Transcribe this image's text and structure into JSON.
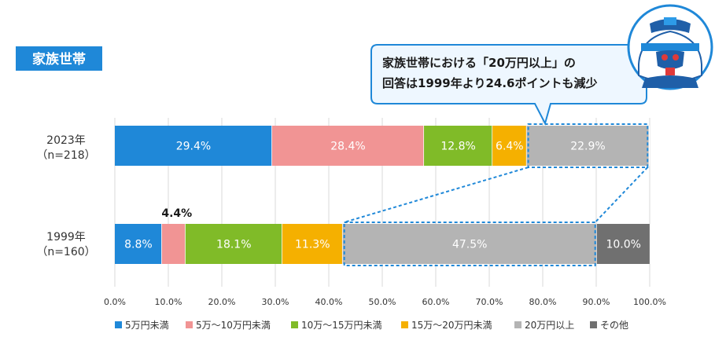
{
  "badge": {
    "label": "家族世帯",
    "color": "#1f88d8"
  },
  "callout": {
    "line1": "家族世帯における「20万円以上」の",
    "line2": "回答は1999年より24.6ポイントも減少",
    "border_color": "#1f88d8",
    "fill_color": "#eef7ff"
  },
  "mascot": {
    "icon": "helmet-mascot-icon"
  },
  "chart_data": {
    "type": "bar",
    "orientation": "horizontal",
    "stacked": true,
    "categories": [
      {
        "line1": "2023年",
        "line2": "（n=218）"
      },
      {
        "line1": "1999年",
        "line2": "（n=160）"
      }
    ],
    "series": [
      {
        "name": "5万円未満",
        "color": "#1f88d8",
        "values": [
          29.4,
          8.8
        ],
        "labels": [
          "29.4%",
          "8.8%"
        ]
      },
      {
        "name": "5万～10万円未満",
        "color": "#f19494",
        "values": [
          28.4,
          4.4
        ],
        "labels": [
          "28.4%",
          "4.4%"
        ]
      },
      {
        "name": "10万～15万円未満",
        "color": "#80bb28",
        "values": [
          12.8,
          18.1
        ],
        "labels": [
          "12.8%",
          "18.1%"
        ]
      },
      {
        "name": "15万～20万円未満",
        "color": "#f5b000",
        "values": [
          6.4,
          11.3
        ],
        "labels": [
          "6.4%",
          "11.3%"
        ]
      },
      {
        "name": "20万円以上",
        "color": "#b4b4b4",
        "values": [
          22.9,
          47.5
        ],
        "labels": [
          "22.9%",
          "47.5%"
        ]
      },
      {
        "name": "その他",
        "color": "#707070",
        "values": [
          0.0,
          10.0
        ],
        "labels": [
          "",
          "10.0%"
        ]
      }
    ],
    "xlim": [
      0,
      100
    ],
    "xticks": [
      "0.0%",
      "10.0%",
      "20.0%",
      "30.0%",
      "40.0%",
      "50.0%",
      "60.0%",
      "70.0%",
      "80.0%",
      "90.0%",
      "100.0%"
    ],
    "grid": true,
    "legend_position": "bottom",
    "highlight_series": "20万円以上"
  }
}
